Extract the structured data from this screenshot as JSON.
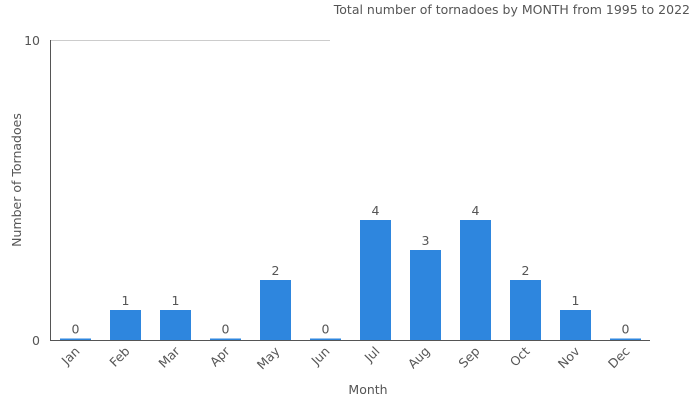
{
  "chart_data": {
    "type": "bar",
    "title": "Total number of tornadoes by MONTH from 1995 to 2022",
    "xlabel": "Month",
    "ylabel": "Number of Tornadoes",
    "ylim": [
      0,
      10
    ],
    "yticks": [
      "0",
      "10"
    ],
    "categories": [
      "Jan",
      "Feb",
      "Mar",
      "Apr",
      "May",
      "Jun",
      "Jul",
      "Aug",
      "Sep",
      "Oct",
      "Nov",
      "Dec"
    ],
    "values": [
      0,
      1,
      1,
      0,
      2,
      0,
      4,
      3,
      4,
      2,
      1,
      0
    ],
    "grid": true,
    "legend": "none",
    "colors": {
      "bar": "#2e86de",
      "axis": "#555555",
      "grid": "#cccccc"
    }
  }
}
